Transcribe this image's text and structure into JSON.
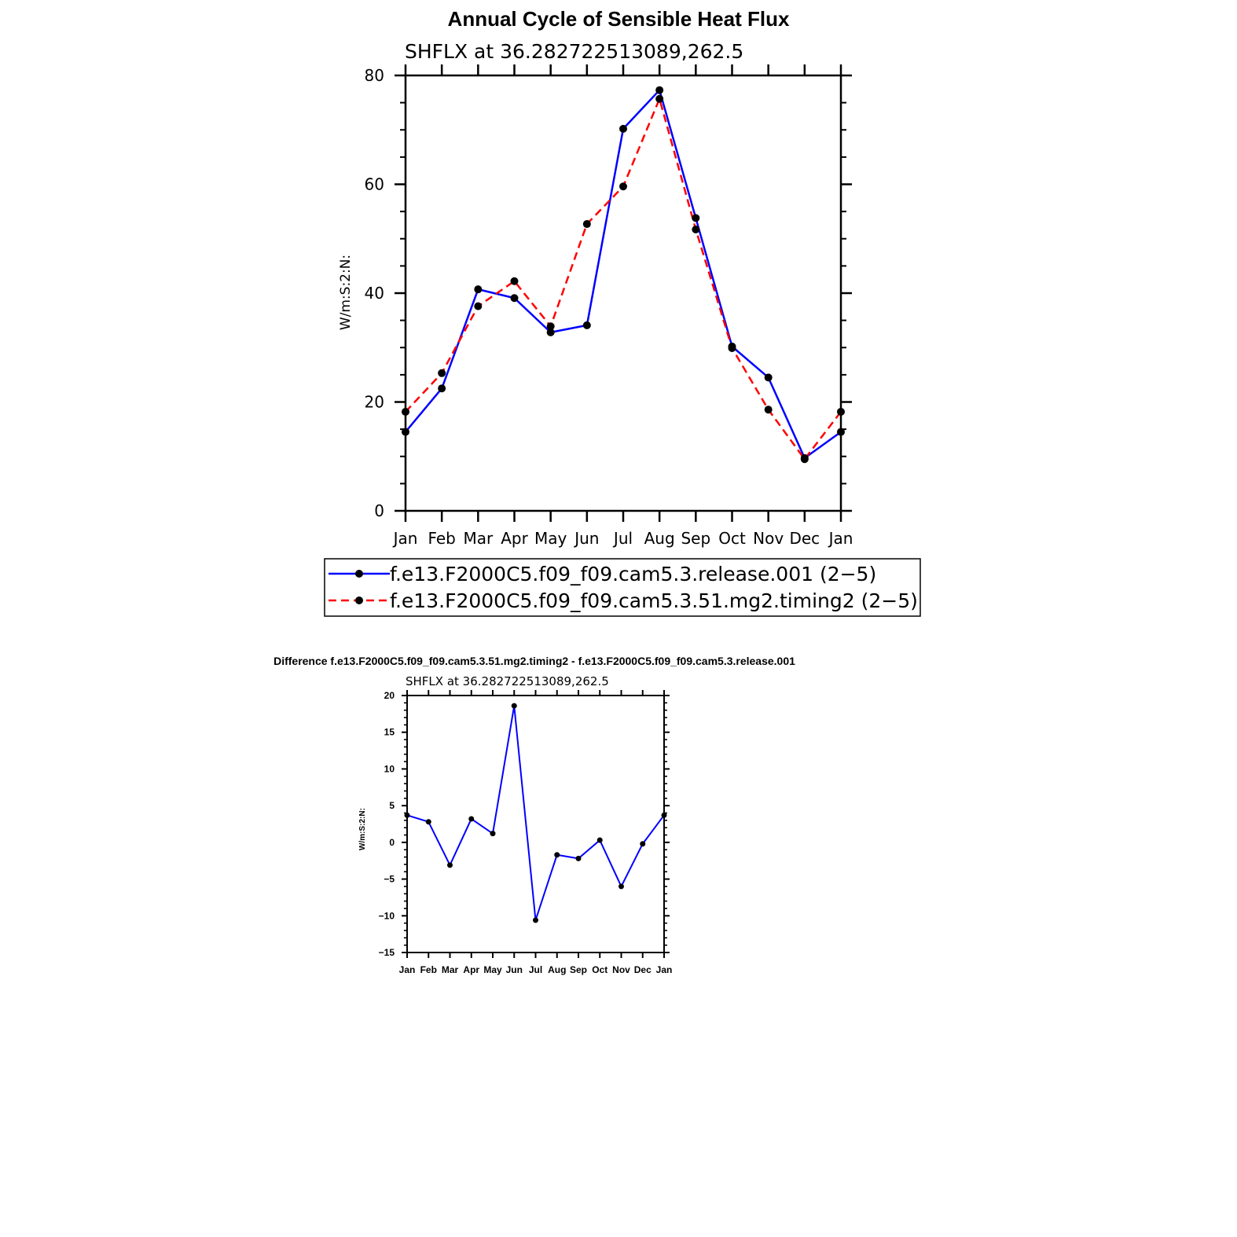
{
  "chart_data": [
    {
      "type": "line",
      "title": "Annual Cycle of Sensible Heat Flux",
      "subtitle": "SHFLX  at  36.282722513089,262.5",
      "xlabel": "",
      "ylabel": "W/m:S:2:N:",
      "ylim": [
        0,
        80
      ],
      "yticks": [
        "0",
        "20",
        "40",
        "60",
        "80"
      ],
      "categories": [
        "Jan",
        "Feb",
        "Mar",
        "Apr",
        "May",
        "Jun",
        "Jul",
        "Aug",
        "Sep",
        "Oct",
        "Nov",
        "Dec",
        "Jan"
      ],
      "series": [
        {
          "name": "f.e13.F2000C5.f09_f09.cam5.3.release.001 (2−5)",
          "color": "#0000ff",
          "dash": "solid",
          "values": [
            14.5,
            22.5,
            40.7,
            39.1,
            32.8,
            34.1,
            70.2,
            77.3,
            53.8,
            30.2,
            24.5,
            9.7,
            14.5
          ]
        },
        {
          "name": "f.e13.F2000C5.f09_f09.cam5.3.51.mg2.timing2 (2−5)",
          "color": "#ff0000",
          "dash": "dashed",
          "values": [
            18.2,
            25.3,
            37.6,
            42.2,
            33.9,
            52.7,
            59.6,
            75.7,
            51.7,
            29.9,
            18.6,
            9.5,
            18.2
          ]
        }
      ]
    },
    {
      "type": "line",
      "title": "Difference f.e13.F2000C5.f09_f09.cam5.3.51.mg2.timing2 - f.e13.F2000C5.f09_f09.cam5.3.release.001",
      "subtitle": "SHFLX  at  36.282722513089,262.5",
      "xlabel": "",
      "ylabel": "W/m:S:2:N:",
      "ylim": [
        -15,
        20
      ],
      "yticks": [
        "−15",
        "−10",
        "−5",
        "0",
        "5",
        "10",
        "15",
        "20"
      ],
      "categories": [
        "Jan",
        "Feb",
        "Mar",
        "Apr",
        "May",
        "Jun",
        "Jul",
        "Aug",
        "Sep",
        "Oct",
        "Nov",
        "Dec",
        "Jan"
      ],
      "series": [
        {
          "name": "difference",
          "color": "#0000ff",
          "dash": "solid",
          "values": [
            3.7,
            2.8,
            -3.1,
            3.2,
            1.2,
            18.6,
            -10.6,
            -1.7,
            -2.2,
            0.3,
            -6.0,
            -0.2,
            3.7
          ]
        }
      ]
    }
  ]
}
